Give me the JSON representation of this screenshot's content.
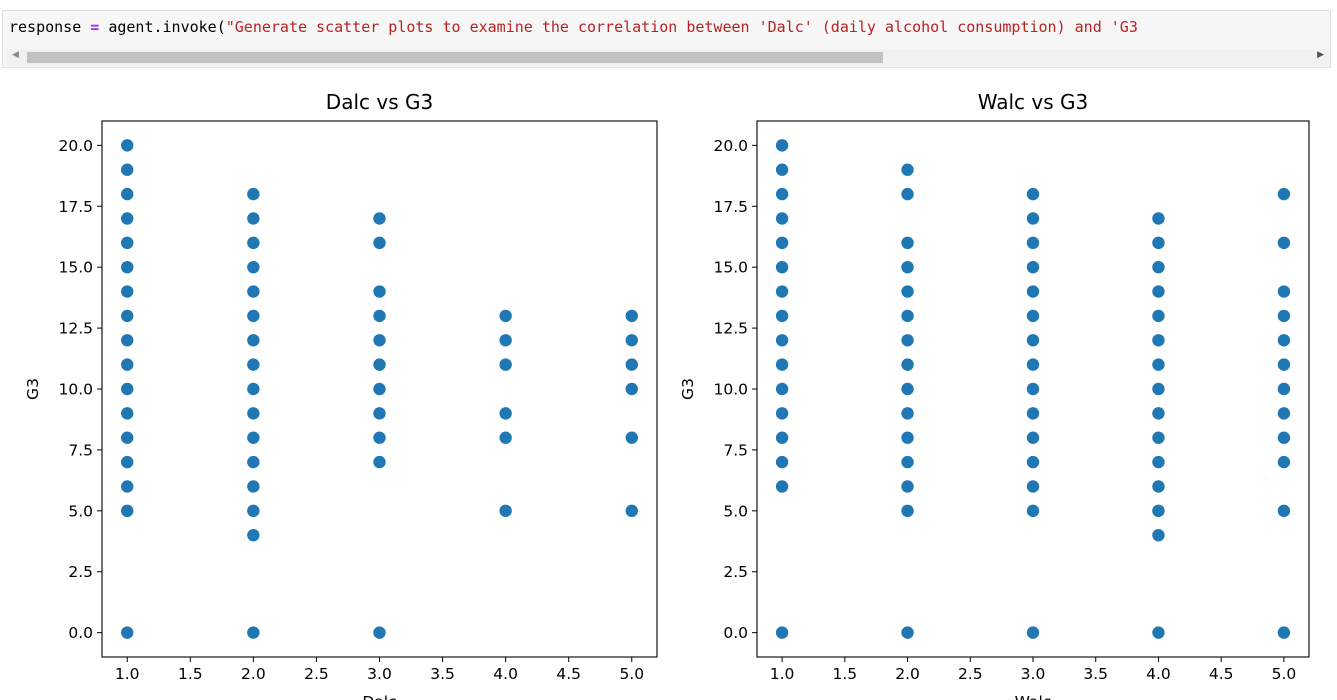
{
  "code": {
    "var": "response",
    "op": "=",
    "call": "agent.invoke(",
    "string": "\"Generate scatter plots to examine the correlation between 'Dalc' (daily alcohol consumption) and 'G3"
  },
  "colors": {
    "marker": "#1f77b4"
  },
  "icons": {
    "scroll_left": "scroll-left-arrow-icon",
    "scroll_right": "scroll-right-arrow-icon"
  },
  "chart_data": [
    {
      "type": "scatter",
      "title": "Dalc vs G3",
      "xlabel": "Dalc",
      "ylabel": "G3",
      "xlim": [
        0.8,
        5.2
      ],
      "ylim": [
        -1,
        21
      ],
      "xticks": [
        "1.0",
        "1.5",
        "2.0",
        "2.5",
        "3.0",
        "3.5",
        "4.0",
        "4.5",
        "5.0"
      ],
      "yticks": [
        "0.0",
        "2.5",
        "5.0",
        "7.5",
        "10.0",
        "12.5",
        "15.0",
        "17.5",
        "20.0"
      ],
      "points": [
        [
          1,
          20
        ],
        [
          1,
          19
        ],
        [
          1,
          18
        ],
        [
          1,
          17
        ],
        [
          1,
          16
        ],
        [
          1,
          15
        ],
        [
          1,
          14
        ],
        [
          1,
          13
        ],
        [
          1,
          12
        ],
        [
          1,
          11
        ],
        [
          1,
          10
        ],
        [
          1,
          9
        ],
        [
          1,
          8
        ],
        [
          1,
          7
        ],
        [
          1,
          6
        ],
        [
          1,
          5
        ],
        [
          1,
          0
        ],
        [
          2,
          18
        ],
        [
          2,
          17
        ],
        [
          2,
          16
        ],
        [
          2,
          15
        ],
        [
          2,
          14
        ],
        [
          2,
          13
        ],
        [
          2,
          12
        ],
        [
          2,
          11
        ],
        [
          2,
          10
        ],
        [
          2,
          9
        ],
        [
          2,
          8
        ],
        [
          2,
          7
        ],
        [
          2,
          6
        ],
        [
          2,
          5
        ],
        [
          2,
          4
        ],
        [
          2,
          0
        ],
        [
          3,
          17
        ],
        [
          3,
          16
        ],
        [
          3,
          14
        ],
        [
          3,
          13
        ],
        [
          3,
          12
        ],
        [
          3,
          11
        ],
        [
          3,
          10
        ],
        [
          3,
          9
        ],
        [
          3,
          8
        ],
        [
          3,
          7
        ],
        [
          3,
          0
        ],
        [
          4,
          13
        ],
        [
          4,
          12
        ],
        [
          4,
          11
        ],
        [
          4,
          9
        ],
        [
          4,
          8
        ],
        [
          4,
          5
        ],
        [
          5,
          13
        ],
        [
          5,
          12
        ],
        [
          5,
          11
        ],
        [
          5,
          10
        ],
        [
          5,
          8
        ],
        [
          5,
          5
        ]
      ]
    },
    {
      "type": "scatter",
      "title": "Walc vs G3",
      "xlabel": "Walc",
      "ylabel": "G3",
      "xlim": [
        0.8,
        5.2
      ],
      "ylim": [
        -1,
        21
      ],
      "xticks": [
        "1.0",
        "1.5",
        "2.0",
        "2.5",
        "3.0",
        "3.5",
        "4.0",
        "4.5",
        "5.0"
      ],
      "yticks": [
        "0.0",
        "2.5",
        "5.0",
        "7.5",
        "10.0",
        "12.5",
        "15.0",
        "17.5",
        "20.0"
      ],
      "points": [
        [
          1,
          20
        ],
        [
          1,
          19
        ],
        [
          1,
          18
        ],
        [
          1,
          17
        ],
        [
          1,
          16
        ],
        [
          1,
          15
        ],
        [
          1,
          14
        ],
        [
          1,
          13
        ],
        [
          1,
          12
        ],
        [
          1,
          11
        ],
        [
          1,
          10
        ],
        [
          1,
          9
        ],
        [
          1,
          8
        ],
        [
          1,
          7
        ],
        [
          1,
          6
        ],
        [
          1,
          0
        ],
        [
          2,
          19
        ],
        [
          2,
          18
        ],
        [
          2,
          16
        ],
        [
          2,
          15
        ],
        [
          2,
          14
        ],
        [
          2,
          13
        ],
        [
          2,
          12
        ],
        [
          2,
          11
        ],
        [
          2,
          10
        ],
        [
          2,
          9
        ],
        [
          2,
          8
        ],
        [
          2,
          7
        ],
        [
          2,
          6
        ],
        [
          2,
          5
        ],
        [
          2,
          0
        ],
        [
          3,
          18
        ],
        [
          3,
          17
        ],
        [
          3,
          16
        ],
        [
          3,
          15
        ],
        [
          3,
          14
        ],
        [
          3,
          13
        ],
        [
          3,
          12
        ],
        [
          3,
          11
        ],
        [
          3,
          10
        ],
        [
          3,
          9
        ],
        [
          3,
          8
        ],
        [
          3,
          7
        ],
        [
          3,
          6
        ],
        [
          3,
          5
        ],
        [
          3,
          0
        ],
        [
          4,
          17
        ],
        [
          4,
          16
        ],
        [
          4,
          15
        ],
        [
          4,
          14
        ],
        [
          4,
          13
        ],
        [
          4,
          12
        ],
        [
          4,
          11
        ],
        [
          4,
          10
        ],
        [
          4,
          9
        ],
        [
          4,
          8
        ],
        [
          4,
          7
        ],
        [
          4,
          6
        ],
        [
          4,
          5
        ],
        [
          4,
          4
        ],
        [
          4,
          0
        ],
        [
          5,
          18
        ],
        [
          5,
          16
        ],
        [
          5,
          14
        ],
        [
          5,
          13
        ],
        [
          5,
          12
        ],
        [
          5,
          11
        ],
        [
          5,
          10
        ],
        [
          5,
          9
        ],
        [
          5,
          8
        ],
        [
          5,
          7
        ],
        [
          5,
          5
        ],
        [
          5,
          0
        ]
      ]
    }
  ]
}
